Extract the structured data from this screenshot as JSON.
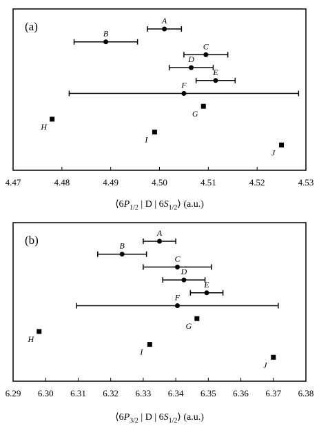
{
  "chart_data": [
    {
      "type": "scatter",
      "panel_label": "(a)",
      "xlabel_parts": {
        "open": "⟨6",
        "P": "P",
        "sub": "1/2",
        "mid": " | D | 6",
        "S": "S",
        "sub2": "1/2",
        "close": "⟩ (a.u.)"
      },
      "xlim": [
        4.47,
        4.53
      ],
      "xticks": [
        "4.47",
        "4.48",
        "4.49",
        "4.50",
        "4.51",
        "4.52",
        "4.53"
      ],
      "grid": false,
      "points": [
        {
          "label": "A",
          "x": 4.501,
          "err": 0.0035,
          "row": 1,
          "marker": "circle"
        },
        {
          "label": "B",
          "x": 4.489,
          "err": 0.0065,
          "row": 2,
          "marker": "circle"
        },
        {
          "label": "C",
          "x": 4.5095,
          "err": 0.0045,
          "row": 3,
          "marker": "circle"
        },
        {
          "label": "D",
          "x": 4.5065,
          "err": 0.0045,
          "row": 4,
          "marker": "circle"
        },
        {
          "label": "E",
          "x": 4.5115,
          "err": 0.004,
          "row": 5,
          "marker": "circle"
        },
        {
          "label": "F",
          "x": 4.505,
          "err": 0.0235,
          "row": 6,
          "marker": "circle"
        },
        {
          "label": "G",
          "x": 4.509,
          "err": 0,
          "row": 7,
          "marker": "square",
          "label_pos": "below-left"
        },
        {
          "label": "H",
          "x": 4.478,
          "err": 0,
          "row": 8,
          "marker": "square",
          "label_pos": "below-left"
        },
        {
          "label": "I",
          "x": 4.499,
          "err": 0,
          "row": 9,
          "marker": "square",
          "label_pos": "below-left"
        },
        {
          "label": "J",
          "x": 4.525,
          "err": 0,
          "row": 10,
          "marker": "square",
          "label_pos": "below-left"
        }
      ]
    },
    {
      "type": "scatter",
      "panel_label": "(b)",
      "xlabel_parts": {
        "open": "⟨6",
        "P": "P",
        "sub": "3/2",
        "mid": " | D | 6",
        "S": "S",
        "sub2": "1/2",
        "close": "⟩ (a.u.)"
      },
      "xlim": [
        6.29,
        6.38
      ],
      "xticks": [
        "6.29",
        "6.30",
        "6.31",
        "6.32",
        "6.33",
        "6.34",
        "6.35",
        "6.36",
        "6.37",
        "6.38"
      ],
      "grid": false,
      "points": [
        {
          "label": "A",
          "x": 6.335,
          "err": 0.005,
          "row": 1,
          "marker": "circle"
        },
        {
          "label": "B",
          "x": 6.3235,
          "err": 0.0075,
          "row": 2,
          "marker": "circle"
        },
        {
          "label": "C",
          "x": 6.3405,
          "err": 0.0105,
          "row": 3,
          "marker": "circle"
        },
        {
          "label": "D",
          "x": 6.3425,
          "err": 0.0065,
          "row": 4,
          "marker": "circle"
        },
        {
          "label": "E",
          "x": 6.3495,
          "err": 0.005,
          "row": 5,
          "marker": "circle"
        },
        {
          "label": "F",
          "x": 6.3405,
          "err": 0.031,
          "row": 6,
          "marker": "circle"
        },
        {
          "label": "G",
          "x": 6.3465,
          "err": 0,
          "row": 7,
          "marker": "square",
          "label_pos": "below-left"
        },
        {
          "label": "H",
          "x": 6.298,
          "err": 0,
          "row": 8,
          "marker": "square",
          "label_pos": "below-left"
        },
        {
          "label": "I",
          "x": 6.332,
          "err": 0,
          "row": 9,
          "marker": "square",
          "label_pos": "below-left"
        },
        {
          "label": "J",
          "x": 6.37,
          "err": 0,
          "row": 10,
          "marker": "square",
          "label_pos": "below-left"
        }
      ]
    }
  ]
}
